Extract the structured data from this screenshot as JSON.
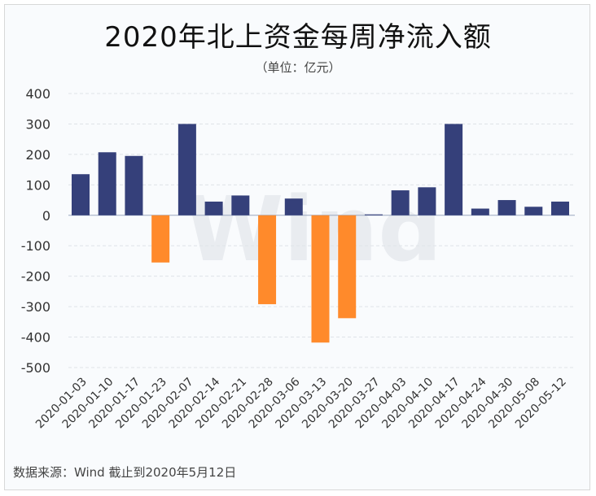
{
  "chart_data": {
    "type": "bar",
    "title": "2020年北上资金每周净流入额",
    "subtitle": "（单位：亿元）",
    "source": "数据来源：Wind  截止到2020年5月12日",
    "watermark": "Wind",
    "xlabel": "",
    "ylabel": "",
    "ylim": [
      -500,
      400
    ],
    "yticks": [
      400,
      300,
      200,
      100,
      0,
      -100,
      -200,
      -300,
      -400,
      -500
    ],
    "grid": true,
    "positive_color": "#35407a",
    "negative_color": "#ff8a2b",
    "categories": [
      "2020-01-03",
      "2020-01-10",
      "2020-01-17",
      "2020-01-23",
      "2020-02-07",
      "2020-02-14",
      "2020-02-21",
      "2020-02-28",
      "2020-03-06",
      "2020-03-13",
      "2020-03-20",
      "2020-03-27",
      "2020-04-03",
      "2020-04-10",
      "2020-04-17",
      "2020-04-24",
      "2020-04-30",
      "2020-05-08",
      "2020-05-12"
    ],
    "values": [
      135,
      207,
      195,
      -155,
      300,
      45,
      65,
      -292,
      55,
      -418,
      -338,
      3,
      82,
      92,
      300,
      22,
      50,
      28,
      45
    ]
  }
}
